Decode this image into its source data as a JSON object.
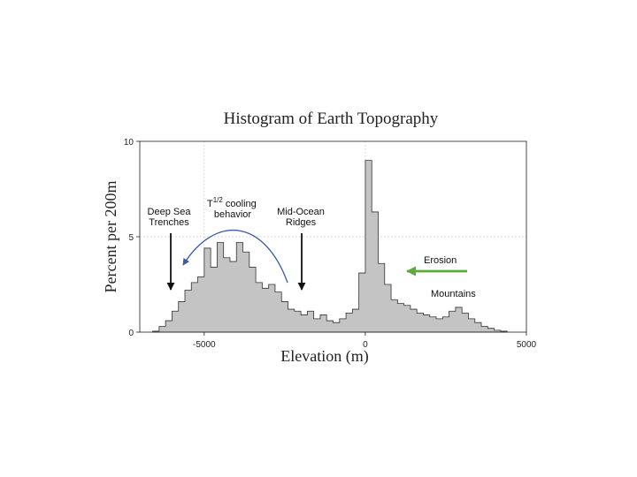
{
  "chart_data": {
    "type": "bar",
    "title": "Histogram of Earth Topography",
    "xlabel": "Elevation (m)",
    "ylabel": "Percent per 200m",
    "xlim": [
      -7000,
      5000
    ],
    "ylim": [
      0,
      10
    ],
    "xticks": [
      {
        "value": -5000,
        "label": "-5000"
      },
      {
        "value": 0,
        "label": "0"
      },
      {
        "value": 5000,
        "label": "5000"
      }
    ],
    "yticks": [
      {
        "value": 0,
        "label": "0"
      },
      {
        "value": 5,
        "label": "5"
      },
      {
        "value": 10,
        "label": "10"
      }
    ],
    "grid": true,
    "bin_width": 200,
    "bins": [
      {
        "x0": -6600,
        "v": 0.05
      },
      {
        "x0": -6400,
        "v": 0.3
      },
      {
        "x0": -6200,
        "v": 0.6
      },
      {
        "x0": -6000,
        "v": 1.1
      },
      {
        "x0": -5800,
        "v": 1.6
      },
      {
        "x0": -5600,
        "v": 2.2
      },
      {
        "x0": -5400,
        "v": 2.6
      },
      {
        "x0": -5200,
        "v": 2.9
      },
      {
        "x0": -5000,
        "v": 4.4
      },
      {
        "x0": -4800,
        "v": 3.4
      },
      {
        "x0": -4600,
        "v": 4.7
      },
      {
        "x0": -4400,
        "v": 3.9
      },
      {
        "x0": -4200,
        "v": 3.7
      },
      {
        "x0": -4000,
        "v": 4.7
      },
      {
        "x0": -3800,
        "v": 4.2
      },
      {
        "x0": -3600,
        "v": 3.4
      },
      {
        "x0": -3400,
        "v": 2.6
      },
      {
        "x0": -3200,
        "v": 2.3
      },
      {
        "x0": -3000,
        "v": 2.5
      },
      {
        "x0": -2800,
        "v": 2.1
      },
      {
        "x0": -2600,
        "v": 1.6
      },
      {
        "x0": -2400,
        "v": 1.2
      },
      {
        "x0": -2200,
        "v": 1.1
      },
      {
        "x0": -2000,
        "v": 0.9
      },
      {
        "x0": -1800,
        "v": 1.1
      },
      {
        "x0": -1600,
        "v": 0.7
      },
      {
        "x0": -1400,
        "v": 0.9
      },
      {
        "x0": -1200,
        "v": 0.6
      },
      {
        "x0": -1000,
        "v": 0.5
      },
      {
        "x0": -800,
        "v": 0.7
      },
      {
        "x0": -600,
        "v": 1.0
      },
      {
        "x0": -400,
        "v": 1.2
      },
      {
        "x0": -200,
        "v": 3.1
      },
      {
        "x0": 0,
        "v": 9.0
      },
      {
        "x0": 200,
        "v": 6.3
      },
      {
        "x0": 400,
        "v": 3.6
      },
      {
        "x0": 600,
        "v": 2.5
      },
      {
        "x0": 800,
        "v": 1.7
      },
      {
        "x0": 1000,
        "v": 1.5
      },
      {
        "x0": 1200,
        "v": 1.4
      },
      {
        "x0": 1400,
        "v": 1.2
      },
      {
        "x0": 1600,
        "v": 1.0
      },
      {
        "x0": 1800,
        "v": 0.9
      },
      {
        "x0": 2000,
        "v": 0.8
      },
      {
        "x0": 2200,
        "v": 0.7
      },
      {
        "x0": 2400,
        "v": 0.8
      },
      {
        "x0": 2600,
        "v": 1.1
      },
      {
        "x0": 2800,
        "v": 1.3
      },
      {
        "x0": 3000,
        "v": 1.0
      },
      {
        "x0": 3200,
        "v": 0.7
      },
      {
        "x0": 3400,
        "v": 0.5
      },
      {
        "x0": 3600,
        "v": 0.3
      },
      {
        "x0": 3800,
        "v": 0.2
      },
      {
        "x0": 4000,
        "v": 0.1
      },
      {
        "x0": 4200,
        "v": 0.05
      }
    ],
    "annotations": [
      {
        "lines": [
          "Deep Sea",
          "Trenches"
        ],
        "arrow_at": -6000
      },
      {
        "lines": [
          "T",
          " cooling",
          "behavior"
        ],
        "superscript": "1/2"
      },
      {
        "lines": [
          "Mid-Ocean",
          "Ridges"
        ],
        "arrow_at": -2000
      },
      {
        "lines": [
          "Erosion"
        ]
      },
      {
        "lines": [
          "Mountains"
        ]
      }
    ]
  },
  "colors": {
    "bar_fill": "#c4c4c4",
    "bar_stroke": "#333333",
    "cooling_arrow": "#3a57a8",
    "erosion_arrow": "#5aac3c",
    "arrow": "#111111",
    "grid": "#bdbdbd"
  }
}
